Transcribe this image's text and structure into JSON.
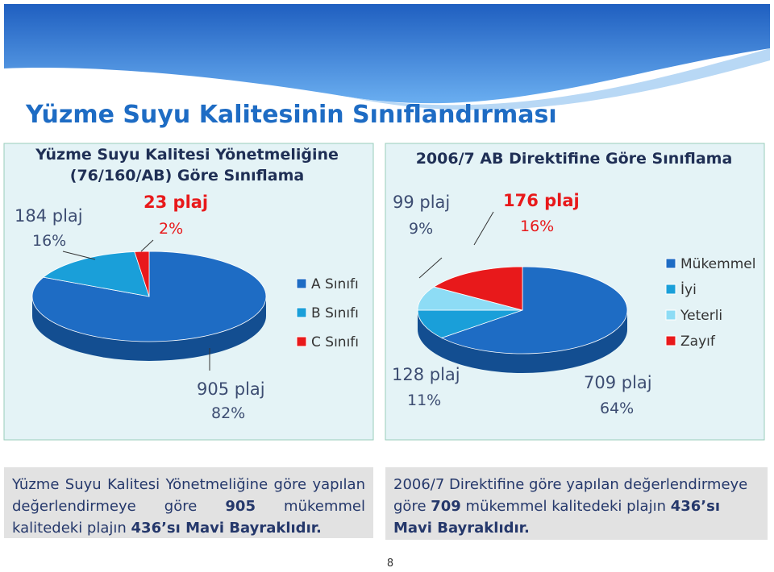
{
  "slide": {
    "title": "Yüzme Suyu Kalitesinin Sınıflandırması",
    "notes": [
      [
        "Yüzme Suyu Kalitesi Yönetmeliğine göre yapılan değerlendirmeye göre ",
        "905",
        " mükemmel kalitedeki plajın ",
        "436’sı Mavi Bayraklıdır."
      ],
      [
        "2006/7 Direktifine göre yapılan değerlendirmeye göre ",
        "709",
        " mükemmel kalitedeki plajın ",
        "436’sı Mavi Bayraklıdır."
      ]
    ],
    "page": "8"
  },
  "chart_data": [
    {
      "type": "pie",
      "title": [
        "Yüzme Suyu Kalitesi Yönetmeliğine",
        "(76/160/AB) Göre Sınıflama"
      ],
      "categories": [
        "A Sınıfı",
        "B Sınıfı",
        "C Sınıfı"
      ],
      "values": [
        82,
        16,
        2
      ],
      "value_labels": [
        "82%",
        "16%",
        "2%"
      ],
      "count_labels": [
        "905 plaj",
        "184 plaj",
        "23 plaj"
      ],
      "colors": [
        "#1e6cc4",
        "#1a9fd9",
        "#e8191b"
      ]
    },
    {
      "type": "pie",
      "title": [
        "2006/7 AB Direktifine Göre Sınıflama"
      ],
      "categories": [
        "Mükemmel",
        "İyi",
        "Yeterli",
        "Zayıf"
      ],
      "values": [
        64,
        11,
        9,
        16
      ],
      "value_labels": [
        "64%",
        "11%",
        "9%",
        "16%"
      ],
      "count_labels": [
        "709 plaj",
        "128 plaj",
        "99 plaj",
        "176 plaj"
      ],
      "colors": [
        "#1e6cc4",
        "#1a9fd9",
        "#8ddcf5",
        "#e8191b"
      ]
    }
  ]
}
